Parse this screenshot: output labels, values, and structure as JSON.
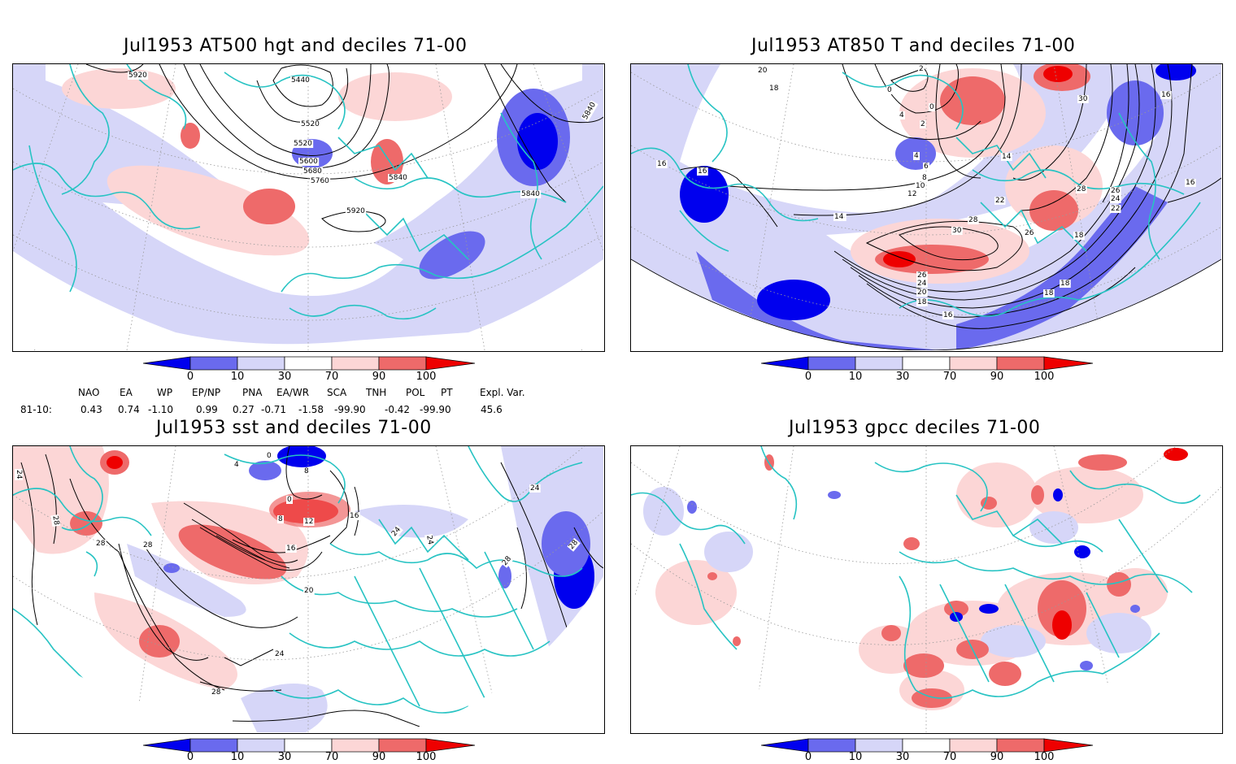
{
  "panels": {
    "p1": {
      "title": "Jul1953 AT500 hgt and deciles 71-00",
      "contour_labels": [
        "5920",
        "5440",
        "5520",
        "5520",
        "5600",
        "5680",
        "5760",
        "5840",
        "5840",
        "5840",
        "5920"
      ]
    },
    "p2": {
      "title": "Jul1953 AT850 T and deciles 71-00",
      "contour_labels": [
        "20",
        "2",
        "18",
        "0",
        "0",
        "4",
        "2",
        "30",
        "16",
        "16",
        "4",
        "6",
        "8",
        "10",
        "12",
        "14",
        "16",
        "14",
        "28",
        "26",
        "24",
        "22",
        "22",
        "18",
        "16",
        "14",
        "28",
        "30",
        "26",
        "26",
        "24",
        "20",
        "18",
        "16",
        "18",
        "18"
      ]
    },
    "p3": {
      "title": "Jul1953 sst and deciles 71-00",
      "contour_labels": [
        "24",
        "28",
        "28",
        "28",
        "0",
        "4",
        "0",
        "8",
        "12",
        "16",
        "16",
        "20",
        "24",
        "28",
        "24",
        "24",
        "28",
        "28",
        "24",
        "8"
      ]
    },
    "p4": {
      "title": "Jul1953 gpcc deciles 71-00",
      "contour_labels": []
    }
  },
  "colorbar": {
    "tick_labels": [
      "0",
      "10",
      "30",
      "70",
      "90",
      "100"
    ],
    "colors": [
      "#0000ee",
      "#6a6aee",
      "#d6d6f8",
      "#ffffff",
      "#fcd6d6",
      "#ee6a6a",
      "#ee0000"
    ]
  },
  "indices": {
    "header": [
      "NAO",
      "EA",
      "WP",
      "EP/NP",
      "PNA",
      "EA/WR",
      "SCA",
      "TNH",
      "POL",
      "PT",
      "Expl. Var."
    ],
    "row_label": "81-10:",
    "values": [
      "0.43",
      "0.74",
      "-1.10",
      "0.99",
      "0.27",
      "-0.71",
      "-1.58",
      "-99.90",
      "-0.42",
      "-99.90",
      "45.6"
    ]
  },
  "colors": {
    "coast": "#27c3c3",
    "contour": "#000000",
    "grid": "#9a9a9a"
  }
}
